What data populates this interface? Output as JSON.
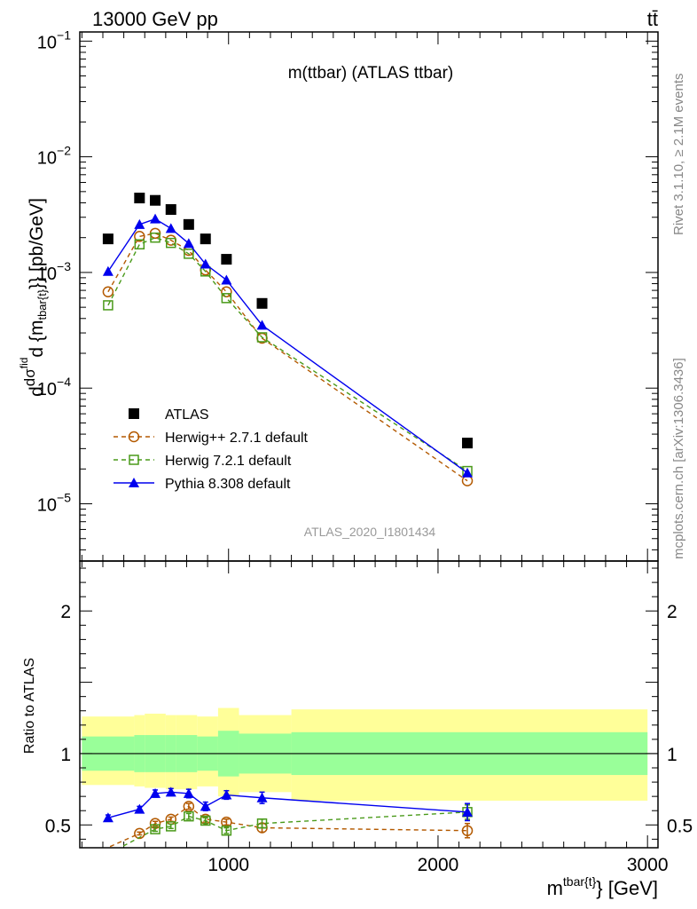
{
  "header": {
    "energy_label": "13000 GeV pp",
    "process_label": "tt̄",
    "analysis_id": "ATLAS_2020_I1801434",
    "side_rivet": "Rivet 3.1.10, ≥ 2.1M events",
    "side_mcplots": "mcplots.cern.ch [arXiv:1306.3436]"
  },
  "chart_data": [
    {
      "type": "scatter",
      "panel": "main",
      "title": "m(ttbar) (ATLAS ttbar)",
      "ylabel_parts": [
        "d",
        "dσ",
        "fid",
        "d {m",
        "tbar{t}",
        "}} [pb/GeV]"
      ],
      "yscale": "log",
      "ylim": [
        3.2e-06,
        0.12
      ],
      "xlim": [
        290,
        3050
      ],
      "ytick_labels": [
        {
          "value": 1e-05,
          "base": "10",
          "exp": "−5"
        },
        {
          "value": 0.0001,
          "base": "10",
          "exp": "−4"
        },
        {
          "value": 0.001,
          "base": "10",
          "exp": "−3"
        },
        {
          "value": 0.01,
          "base": "10",
          "exp": "−2"
        },
        {
          "value": 0.1,
          "base": "10",
          "exp": "−1"
        }
      ],
      "legend_position": "lower-left",
      "series": [
        {
          "name": "ATLAS",
          "color": "#000000",
          "marker": "square",
          "line": "none",
          "x": [
            425,
            575,
            650,
            725,
            810,
            890,
            990,
            1160,
            2140
          ],
          "y": [
            0.00195,
            0.0044,
            0.0042,
            0.0035,
            0.0026,
            0.00195,
            0.0013,
            0.00054,
            3.35e-05
          ]
        },
        {
          "name": "Herwig++ 2.7.1 default",
          "color": "#b35900",
          "marker": "circle",
          "line": "dashed",
          "x": [
            425,
            575,
            650,
            725,
            810,
            890,
            990,
            1160,
            2140
          ],
          "y": [
            0.00068,
            0.00205,
            0.00218,
            0.0019,
            0.00155,
            0.00105,
            0.00068,
            0.00027,
            1.58e-05
          ]
        },
        {
          "name": "Herwig 7.2.1 default",
          "color": "#4a9a1a",
          "marker": "square-open",
          "line": "dashed",
          "x": [
            425,
            575,
            650,
            725,
            810,
            890,
            990,
            1160,
            2140
          ],
          "y": [
            0.00052,
            0.00175,
            0.002,
            0.0018,
            0.00145,
            0.00102,
            0.0006,
            0.000275,
            1.92e-05
          ]
        },
        {
          "name": "Pythia 8.308 default",
          "color": "#0000ee",
          "marker": "triangle",
          "line": "solid",
          "x": [
            425,
            575,
            650,
            725,
            810,
            890,
            990,
            1160,
            2140
          ],
          "y": [
            0.00102,
            0.0026,
            0.0029,
            0.0024,
            0.00178,
            0.00118,
            0.00086,
            0.00035,
            1.85e-05
          ]
        }
      ]
    },
    {
      "type": "scatter",
      "panel": "ratio",
      "ylabel": "Ratio to ATLAS",
      "xlabel_base": "m",
      "xlabel_sup": "tbar{t}",
      "xlabel_tail": "} [GeV]",
      "ylim": [
        0.34,
        2.35
      ],
      "xlim": [
        290,
        3050
      ],
      "ytick_labels": [
        "0.5",
        "1",
        "2"
      ],
      "ytick_values": [
        0.5,
        1,
        2
      ],
      "xtick_labels": [
        "1000",
        "2000",
        "3000"
      ],
      "xtick_values": [
        1000,
        2000,
        3000
      ],
      "bands": [
        {
          "x0": 300,
          "x1": 550,
          "green": [
            0.88,
            1.12
          ],
          "yellow": [
            0.78,
            1.26
          ]
        },
        {
          "x0": 550,
          "x1": 600,
          "green": [
            0.87,
            1.13
          ],
          "yellow": [
            0.77,
            1.27
          ]
        },
        {
          "x0": 600,
          "x1": 700,
          "green": [
            0.87,
            1.13
          ],
          "yellow": [
            0.76,
            1.28
          ]
        },
        {
          "x0": 700,
          "x1": 750,
          "green": [
            0.87,
            1.13
          ],
          "yellow": [
            0.75,
            1.27
          ]
        },
        {
          "x0": 750,
          "x1": 850,
          "green": [
            0.87,
            1.13
          ],
          "yellow": [
            0.75,
            1.27
          ]
        },
        {
          "x0": 850,
          "x1": 950,
          "green": [
            0.88,
            1.12
          ],
          "yellow": [
            0.77,
            1.26
          ]
        },
        {
          "x0": 950,
          "x1": 1050,
          "green": [
            0.84,
            1.16
          ],
          "yellow": [
            0.7,
            1.32
          ]
        },
        {
          "x0": 1050,
          "x1": 1300,
          "green": [
            0.86,
            1.14
          ],
          "yellow": [
            0.73,
            1.27
          ]
        },
        {
          "x0": 1300,
          "x1": 3000,
          "green": [
            0.85,
            1.15
          ],
          "yellow": [
            0.67,
            1.31
          ]
        }
      ],
      "series": [
        {
          "name": "Herwig++ 2.7.1 default",
          "color": "#b35900",
          "marker": "circle",
          "line": "dashed",
          "x": [
            330,
            575,
            650,
            725,
            810,
            890,
            990,
            1160,
            2140
          ],
          "y": [
            0.28,
            0.44,
            0.51,
            0.54,
            0.63,
            0.54,
            0.52,
            0.48,
            0.46
          ],
          "err": [
            0,
            0.01,
            0.015,
            0.015,
            0.02,
            0.02,
            0.02,
            0.03,
            0.05
          ]
        },
        {
          "name": "Herwig 7.2.1 default",
          "color": "#4a9a1a",
          "marker": "square-open",
          "line": "dashed",
          "x": [
            430,
            650,
            725,
            810,
            890,
            990,
            1160,
            2140
          ],
          "y": [
            0.3,
            0.47,
            0.49,
            0.56,
            0.53,
            0.46,
            0.51,
            0.59
          ],
          "err": [
            0,
            0.015,
            0.015,
            0.02,
            0.02,
            0.02,
            0.03,
            0.05
          ]
        },
        {
          "name": "Pythia 8.308 default",
          "color": "#0000ee",
          "marker": "triangle",
          "line": "solid",
          "x": [
            425,
            575,
            650,
            725,
            810,
            890,
            990,
            1160,
            2140
          ],
          "y": [
            0.55,
            0.61,
            0.72,
            0.73,
            0.72,
            0.63,
            0.71,
            0.69,
            0.59
          ],
          "err": [
            0.02,
            0.02,
            0.025,
            0.025,
            0.03,
            0.03,
            0.03,
            0.04,
            0.06
          ]
        }
      ]
    }
  ]
}
